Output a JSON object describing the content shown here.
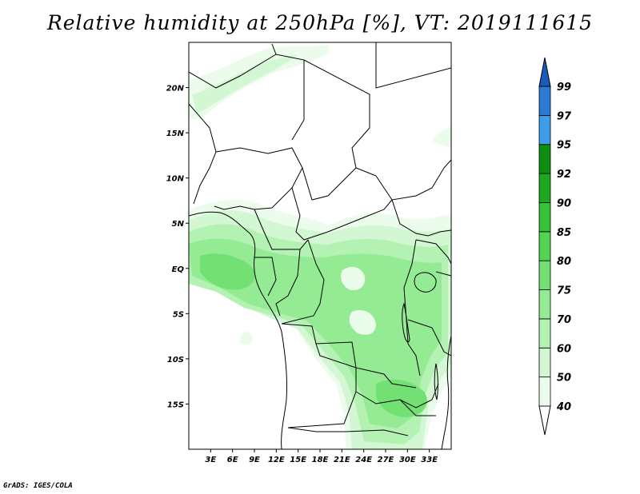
{
  "title": "Relative humidity at 250hPa [%], VT: 2019111615",
  "credit": "GrADS: IGES/COLA",
  "map": {
    "lon_range": [
      0,
      36
    ],
    "lat_range": [
      -20,
      25
    ],
    "lat_ticks": [
      {
        "value": 20,
        "label": "20N"
      },
      {
        "value": 15,
        "label": "15N"
      },
      {
        "value": 10,
        "label": "10N"
      },
      {
        "value": 5,
        "label": "5N"
      },
      {
        "value": 0,
        "label": "EQ"
      },
      {
        "value": -5,
        "label": "5S"
      },
      {
        "value": -10,
        "label": "10S"
      },
      {
        "value": -15,
        "label": "15S"
      }
    ],
    "lon_ticks": [
      {
        "value": 3,
        "label": "3E"
      },
      {
        "value": 6,
        "label": "6E"
      },
      {
        "value": 9,
        "label": "9E"
      },
      {
        "value": 12,
        "label": "12E"
      },
      {
        "value": 15,
        "label": "15E"
      },
      {
        "value": 18,
        "label": "18E"
      },
      {
        "value": 21,
        "label": "21E"
      },
      {
        "value": 24,
        "label": "24E"
      },
      {
        "value": 27,
        "label": "27E"
      },
      {
        "value": 30,
        "label": "30E"
      },
      {
        "value": 33,
        "label": "33E"
      }
    ]
  },
  "colorbar": {
    "levels": [
      {
        "label": "40",
        "color": "#ecfcec"
      },
      {
        "label": "50",
        "color": "#d2f7d2"
      },
      {
        "label": "60",
        "color": "#b4f2b4"
      },
      {
        "label": "70",
        "color": "#94eb94"
      },
      {
        "label": "75",
        "color": "#72e072"
      },
      {
        "label": "80",
        "color": "#52d452"
      },
      {
        "label": "85",
        "color": "#36c236"
      },
      {
        "label": "90",
        "color": "#1ea81e"
      },
      {
        "label": "92",
        "color": "#0e8e0e"
      },
      {
        "label": "95",
        "color": "#3f9ce8"
      },
      {
        "label": "97",
        "color": "#2a7ad6"
      },
      {
        "label": "99",
        "color": "#1a5cbc"
      }
    ],
    "below_color": "#ffffff",
    "above_color": "#1a5cbc"
  }
}
